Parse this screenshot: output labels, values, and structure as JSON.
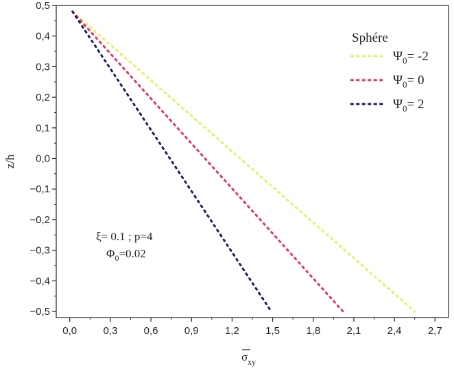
{
  "chart_data": {
    "type": "line",
    "title": "",
    "xlabel": "σxy",
    "xlabel_parts": {
      "base": "σ",
      "sub": "xy"
    },
    "ylabel": "z/h",
    "xlim": [
      -0.1,
      2.8
    ],
    "ylim": [
      -0.52,
      0.5
    ],
    "x_ticks": [
      0.0,
      0.3,
      0.6,
      0.9,
      1.2,
      1.5,
      1.8,
      2.1,
      2.4,
      2.7
    ],
    "x_tick_labels": [
      "0,0",
      "0,3",
      "0,6",
      "0,9",
      "1,2",
      "1,5",
      "1,8",
      "2,1",
      "2,4",
      "2,7"
    ],
    "y_ticks": [
      0.5,
      0.4,
      0.3,
      0.2,
      0.1,
      0.0,
      -0.1,
      -0.2,
      -0.3,
      -0.4,
      -0.5
    ],
    "y_tick_labels": [
      "0,5",
      "0,4",
      "0,3",
      "0,2",
      "0,1",
      "0,0",
      "−0,1",
      "−0,2",
      "−0,3",
      "−0,4",
      "−0,5"
    ],
    "legend": {
      "title": "Sphére",
      "placement": "top-right"
    },
    "series": [
      {
        "name": "Ψ0= -2",
        "label_base": "Ψ",
        "label_sub": "0",
        "label_rest": "= -2",
        "color": "#e6f060",
        "x": [
          0.02,
          2.55
        ],
        "y": [
          0.48,
          -0.5
        ]
      },
      {
        "name": "Ψ0= 0",
        "label_base": "Ψ",
        "label_sub": "0",
        "label_rest": "= 0",
        "color": "#e8306a",
        "x": [
          0.02,
          2.02
        ],
        "y": [
          0.48,
          -0.5
        ]
      },
      {
        "name": "Ψ0= 2",
        "label_base": "Ψ",
        "label_sub": "0",
        "label_rest": "= 2",
        "color": "#1a1a5e",
        "x": [
          0.02,
          1.49
        ],
        "y": [
          0.48,
          -0.5
        ]
      }
    ],
    "annotations": {
      "line1": "ξ= 0.1 ; p=4",
      "line2_base": "Φ",
      "line2_sub": "0",
      "line2_rest": "=0.02"
    },
    "grid": false
  }
}
